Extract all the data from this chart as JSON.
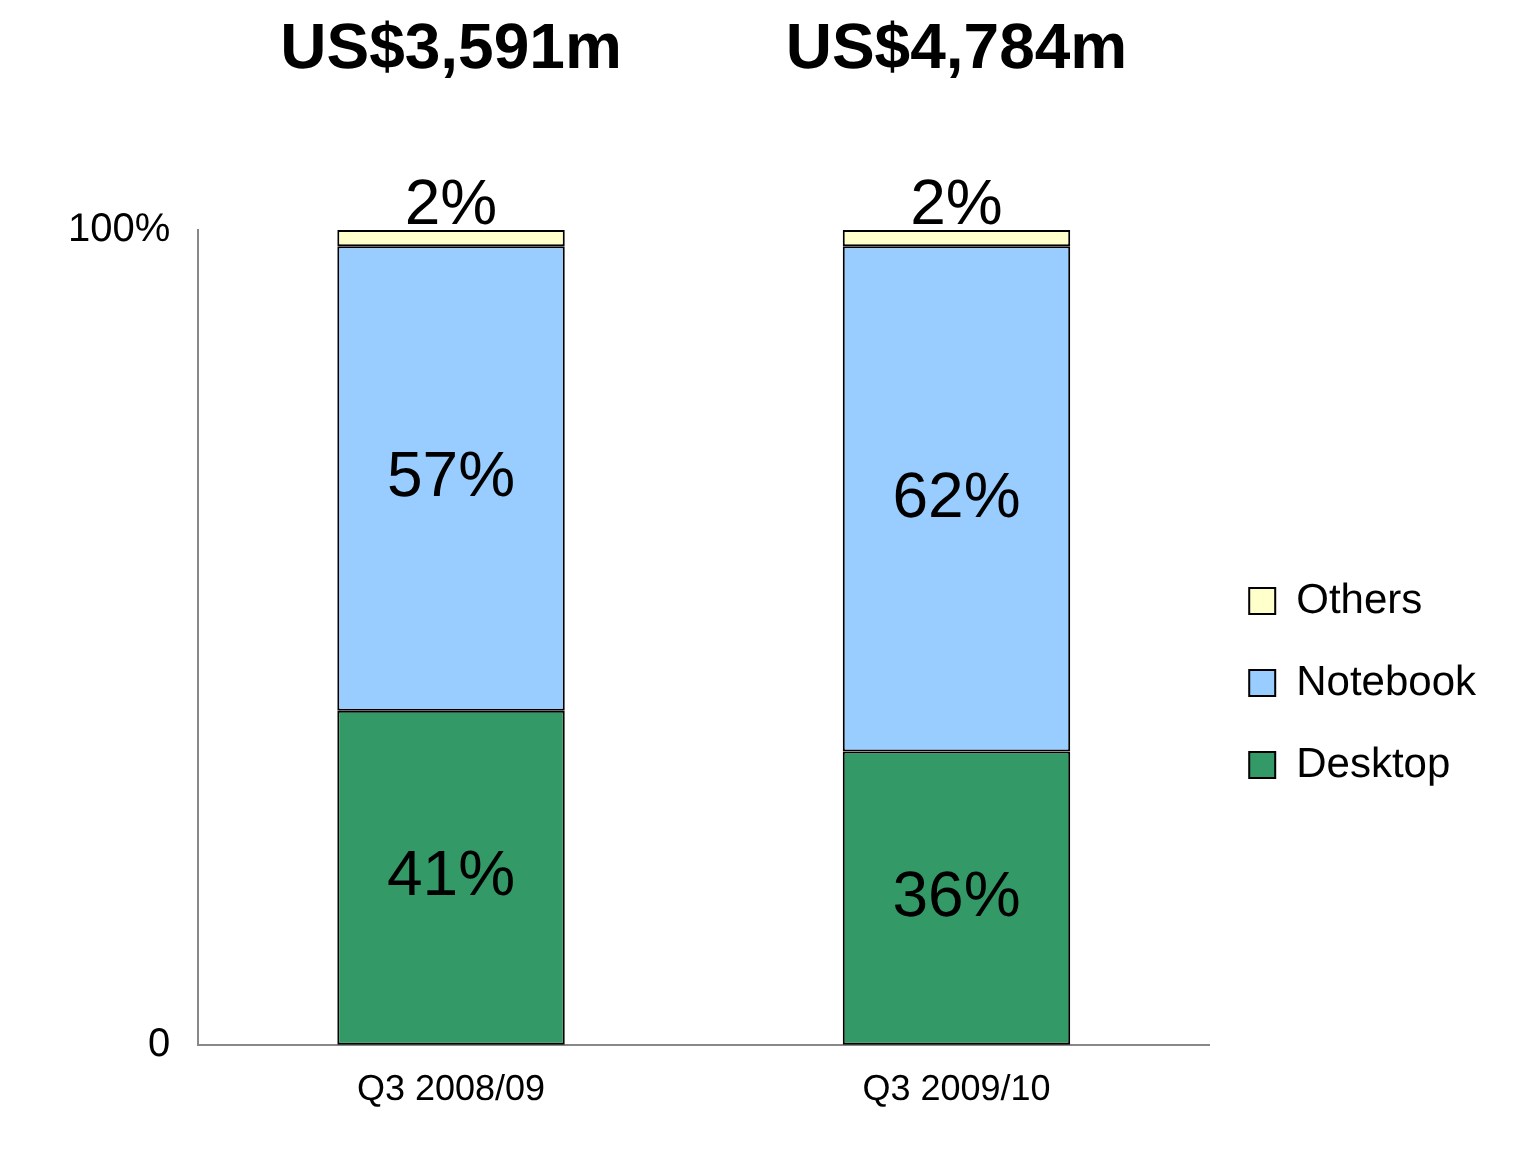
{
  "chart_data": {
    "type": "bar",
    "stacked": true,
    "categories": [
      "Q3 2008/09",
      "Q3 2009/10"
    ],
    "series": [
      {
        "name": "Desktop",
        "color": "#339966",
        "values": [
          41,
          36
        ],
        "value_labels": [
          "41%",
          "36%"
        ]
      },
      {
        "name": "Notebook",
        "color": "#99ccff",
        "values": [
          57,
          62
        ],
        "value_labels": [
          "57%",
          "62%"
        ]
      },
      {
        "name": "Others",
        "color": "#ffffcc",
        "values": [
          2,
          2
        ],
        "value_labels": [
          "2%",
          "2%"
        ]
      }
    ],
    "ylim": [
      0,
      100
    ],
    "yticks": [
      0,
      {
        "value": 100,
        "label": "100%"
      }
    ],
    "totals": [
      "US$3,591m",
      "US$4,784m"
    ],
    "legend": "right",
    "grid": false
  }
}
